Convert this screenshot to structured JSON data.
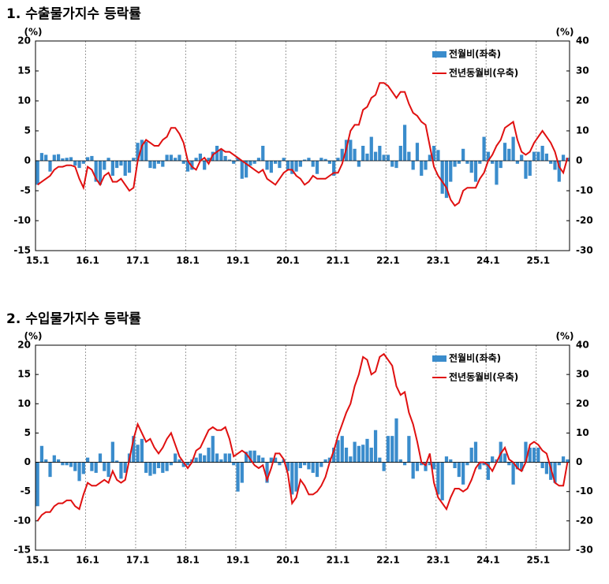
{
  "chart_data": [
    {
      "type": "combo",
      "title": "1. 수출물가지수 등락률",
      "ylabel": "(%)",
      "y2label": "(%)",
      "categories": [
        "15.1",
        null,
        null,
        null,
        null,
        null,
        null,
        null,
        null,
        null,
        null,
        null,
        "16.1",
        null,
        null,
        null,
        null,
        null,
        null,
        null,
        null,
        null,
        null,
        null,
        "17.1",
        null,
        null,
        null,
        null,
        null,
        null,
        null,
        null,
        null,
        null,
        null,
        "18.1",
        null,
        null,
        null,
        null,
        null,
        null,
        null,
        null,
        null,
        null,
        null,
        "19.1",
        null,
        null,
        null,
        null,
        null,
        null,
        null,
        null,
        null,
        null,
        null,
        "20.1",
        null,
        null,
        null,
        null,
        null,
        null,
        null,
        null,
        null,
        null,
        null,
        "21.1",
        null,
        null,
        null,
        null,
        null,
        null,
        null,
        null,
        null,
        null,
        null,
        "22.1",
        null,
        null,
        null,
        null,
        null,
        null,
        null,
        null,
        null,
        null,
        null,
        "23.1",
        null,
        null,
        null,
        null,
        null,
        null,
        null,
        null,
        null,
        null,
        null,
        "24.1",
        null,
        null,
        null,
        null,
        null,
        null,
        null,
        null,
        null,
        null,
        null,
        "25.1",
        null,
        null,
        null,
        null,
        null,
        null,
        null
      ],
      "ylim": [
        -15,
        20
      ],
      "yticks": [
        -15,
        -10,
        -5,
        0,
        5,
        10,
        15,
        20
      ],
      "y2lim": [
        -30,
        40
      ],
      "y2ticks": [
        -30,
        -20,
        -10,
        0,
        10,
        20,
        30,
        40
      ],
      "xgrid": true,
      "legend": "upper right",
      "series": [
        {
          "name": "전월비(좌축)",
          "kind": "bar",
          "color": "#3a8ccc",
          "values": [
            -4,
            1.3,
            1,
            -1.8,
            1,
            1.1,
            0.4,
            0.5,
            0.6,
            -0.8,
            -1.2,
            -0.5,
            0.6,
            0.8,
            -3.5,
            -4,
            -1.5,
            0.5,
            -2.5,
            -1.2,
            -0.8,
            -2.5,
            -2,
            0.5,
            3,
            3.5,
            3.2,
            -1.2,
            -1.3,
            -0.5,
            -1,
            1,
            1,
            0.5,
            1,
            -0.5,
            -1.8,
            -1.5,
            0.5,
            1.2,
            -1.5,
            0.5,
            1.5,
            2.5,
            2,
            0.8,
            0.2,
            -0.5,
            0.5,
            -3,
            -2.8,
            -0.8,
            -0.5,
            0.5,
            2.5,
            -1.5,
            -2,
            -0.5,
            -1.2,
            0.5,
            -1.5,
            -2.2,
            -1.8,
            -1,
            0.2,
            0.5,
            -1,
            -2.2,
            0.5,
            0.3,
            -0.5,
            -2.5,
            0.5,
            2,
            3.5,
            3.5,
            2,
            -1,
            2.5,
            1.2,
            4,
            1.5,
            2.5,
            1,
            1,
            -1,
            -1.2,
            2.5,
            6,
            1.5,
            -1.5,
            3,
            -2.5,
            -1.5,
            1,
            2.5,
            1.8,
            -5.5,
            -6.2,
            -3.5,
            -1,
            -0.5,
            2,
            -0.5,
            -2,
            -3.5,
            -0.5,
            4,
            1.5,
            -0.5,
            -4,
            -1.2,
            3,
            2,
            4,
            -0.5,
            1,
            -3,
            -2.5,
            1.5,
            1.5,
            2.5,
            1.2,
            -0.5,
            -1.5,
            -3.5,
            1,
            0.5
          ]
        },
        {
          "name": "전년동월비(우축)",
          "kind": "line",
          "axis": "y2",
          "color": "#e01010",
          "values": [
            -8,
            -7,
            -6,
            -5,
            -3,
            -2,
            -2,
            -1.5,
            -1.5,
            -2,
            -6,
            -9,
            -2,
            -3,
            -6,
            -8,
            -5,
            -4,
            -7,
            -7,
            -6,
            -8,
            -10,
            -9,
            0,
            5,
            7,
            6,
            5,
            5,
            7,
            8,
            11,
            11,
            9,
            6,
            0,
            -2,
            -3,
            0,
            1,
            -1,
            2,
            3,
            4,
            3,
            3,
            2,
            1,
            0,
            -1,
            -2,
            -3,
            -4,
            -3,
            -6,
            -7,
            -8,
            -6,
            -4,
            -3,
            -3,
            -5,
            -6,
            -8,
            -7,
            -5,
            -6,
            -6,
            -6,
            -5,
            -4,
            -4,
            -1,
            4,
            10,
            12,
            12,
            17,
            18,
            21,
            22,
            26,
            26,
            25,
            23,
            21,
            23,
            23,
            19,
            16,
            15,
            13,
            12,
            5,
            -2,
            -5,
            -7,
            -9,
            -13,
            -15,
            -14,
            -10,
            -9,
            -9,
            -9,
            -6,
            -4,
            0,
            2,
            5,
            7,
            11,
            12,
            13,
            7,
            3,
            2,
            3,
            6,
            8,
            10,
            8,
            6,
            3,
            -2,
            -4,
            1
          ]
        }
      ]
    },
    {
      "type": "combo",
      "title": "2. 수입물가지수 등락률",
      "ylabel": "(%)",
      "y2label": "(%)",
      "categories": [
        "15.1",
        null,
        null,
        null,
        null,
        null,
        null,
        null,
        null,
        null,
        null,
        null,
        "16.1",
        null,
        null,
        null,
        null,
        null,
        null,
        null,
        null,
        null,
        null,
        null,
        "17.1",
        null,
        null,
        null,
        null,
        null,
        null,
        null,
        null,
        null,
        null,
        null,
        "18.1",
        null,
        null,
        null,
        null,
        null,
        null,
        null,
        null,
        null,
        null,
        null,
        "19.1",
        null,
        null,
        null,
        null,
        null,
        null,
        null,
        null,
        null,
        null,
        null,
        "20.1",
        null,
        null,
        null,
        null,
        null,
        null,
        null,
        null,
        null,
        null,
        null,
        "21.1",
        null,
        null,
        null,
        null,
        null,
        null,
        null,
        null,
        null,
        null,
        null,
        "22.1",
        null,
        null,
        null,
        null,
        null,
        null,
        null,
        null,
        null,
        null,
        null,
        "23.1",
        null,
        null,
        null,
        null,
        null,
        null,
        null,
        null,
        null,
        null,
        null,
        "24.1",
        null,
        null,
        null,
        null,
        null,
        null,
        null,
        null,
        null,
        null,
        null,
        "25.1",
        null,
        null,
        null,
        null,
        null,
        null,
        null
      ],
      "ylim": [
        -15,
        20
      ],
      "yticks": [
        -15,
        -10,
        -5,
        0,
        5,
        10,
        15,
        20
      ],
      "y2lim": [
        -30,
        40
      ],
      "y2ticks": [
        -30,
        -20,
        -10,
        0,
        10,
        20,
        30,
        40
      ],
      "xgrid": true,
      "legend": "upper right",
      "series": [
        {
          "name": "전월비(좌축)",
          "kind": "bar",
          "color": "#3a8ccc",
          "values": [
            -7.5,
            2.8,
            0.5,
            -2.5,
            1.2,
            0.5,
            -0.5,
            -0.5,
            -0.8,
            -1.5,
            -3.2,
            -2,
            0.8,
            -1.5,
            -1.8,
            1.5,
            -1.5,
            -2.5,
            3.5,
            0.3,
            -2.8,
            -1.8,
            1.5,
            4.5,
            3,
            4,
            -1.8,
            -2.3,
            -2,
            -1,
            -1.8,
            -1.5,
            -0.5,
            1.5,
            0.5,
            -0.8,
            -0.5,
            0.5,
            0.8,
            1.5,
            1.2,
            2.5,
            4.5,
            1.5,
            0.5,
            1.5,
            1.5,
            -0.5,
            -5,
            -3.5,
            1.8,
            2,
            2,
            1.2,
            0.8,
            -3.5,
            0.8,
            0.8,
            -0.5,
            0.5,
            -1.5,
            -5.5,
            -5,
            -1,
            -0.5,
            -1.2,
            -1.8,
            -2.5,
            -0.8,
            0.5,
            0.8,
            2.5,
            3.8,
            4.5,
            2.5,
            1,
            3.5,
            2.8,
            3,
            4,
            2.5,
            5.5,
            0.8,
            -1.5,
            4.5,
            4.5,
            7.5,
            0.5,
            -0.5,
            4.5,
            -2.8,
            -1.5,
            -0.5,
            -1.5,
            -0.5,
            -1.2,
            -5.5,
            -6.5,
            1,
            0.5,
            -1,
            -2.5,
            -3.8,
            -0.5,
            2.5,
            3.5,
            -1.2,
            -0.5,
            -3,
            1,
            0.5,
            3.5,
            1.5,
            -0.5,
            -3.8,
            -1.2,
            -1.5,
            3.5,
            2.5,
            2.5,
            2.5,
            -1,
            -2,
            -3,
            -3.5,
            -0.5,
            1,
            0.5
          ]
        },
        {
          "name": "전년동월비(우축)",
          "kind": "line",
          "axis": "y2",
          "color": "#e01010",
          "values": [
            -20,
            -18,
            -17,
            -17,
            -15,
            -14,
            -14,
            -13,
            -13,
            -15,
            -16,
            -11,
            -7,
            -8,
            -8,
            -7,
            -6,
            -7,
            -3,
            -6,
            -7,
            -6,
            1,
            8,
            13,
            10,
            7,
            8,
            5,
            3,
            5,
            8,
            10,
            6,
            2,
            0,
            -2,
            0,
            4,
            5,
            8,
            11,
            12,
            11,
            11,
            12,
            8,
            2,
            3,
            4,
            3,
            1,
            -1,
            -2,
            -1,
            -6,
            -2,
            3,
            3,
            1,
            -4,
            -14,
            -12,
            -6,
            -8,
            -11,
            -11,
            -10,
            -8,
            -5,
            0,
            4,
            9,
            13,
            17,
            20,
            26,
            30,
            36,
            35,
            30,
            31,
            36,
            37,
            35,
            33,
            26,
            23,
            24,
            17,
            13,
            7,
            0,
            -1,
            3,
            -7,
            -12,
            -14,
            -16,
            -12,
            -9,
            -9,
            -10,
            -9,
            -6,
            -2,
            0,
            0,
            -1,
            -3,
            0,
            3,
            5,
            1,
            0,
            -2,
            -3,
            0,
            6,
            7,
            6,
            4,
            3,
            -2,
            -7,
            -8,
            -8,
            0
          ]
        }
      ]
    }
  ]
}
